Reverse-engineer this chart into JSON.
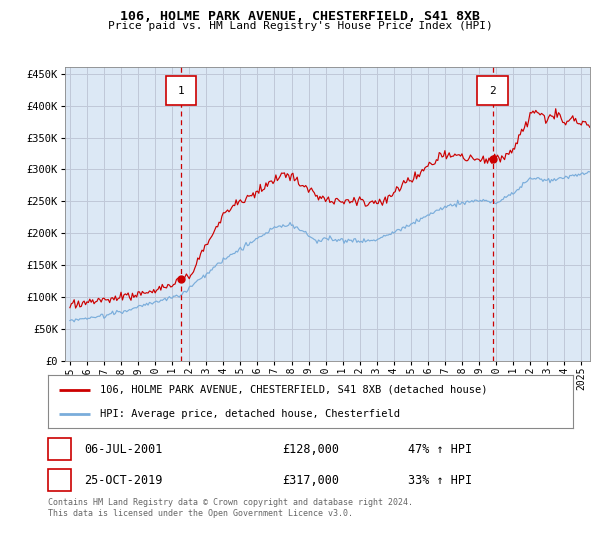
{
  "title": "106, HOLME PARK AVENUE, CHESTERFIELD, S41 8XB",
  "subtitle": "Price paid vs. HM Land Registry's House Price Index (HPI)",
  "legend_line1": "106, HOLME PARK AVENUE, CHESTERFIELD, S41 8XB (detached house)",
  "legend_line2": "HPI: Average price, detached house, Chesterfield",
  "footer": "Contains HM Land Registry data © Crown copyright and database right 2024.\nThis data is licensed under the Open Government Licence v3.0.",
  "marker1_date": "06-JUL-2001",
  "marker1_price": "£128,000",
  "marker1_hpi": "47% ↑ HPI",
  "marker1_x": 2001.51,
  "marker1_y": 128000,
  "marker2_date": "25-OCT-2019",
  "marker2_price": "£317,000",
  "marker2_hpi": "33% ↑ HPI",
  "marker2_x": 2019.81,
  "marker2_y": 317000,
  "red_color": "#cc0000",
  "blue_color": "#7aaddb",
  "grid_color": "#c0c8d8",
  "bg_color": "#dce8f5",
  "marker_box_color": "#cc0000",
  "ylim": [
    0,
    460000
  ],
  "xlim": [
    1994.7,
    2025.5
  ],
  "yticks": [
    0,
    50000,
    100000,
    150000,
    200000,
    250000,
    300000,
    350000,
    400000,
    450000
  ],
  "xticks": [
    1995,
    1996,
    1997,
    1998,
    1999,
    2000,
    2001,
    2002,
    2003,
    2004,
    2005,
    2006,
    2007,
    2008,
    2009,
    2010,
    2011,
    2012,
    2013,
    2014,
    2015,
    2016,
    2017,
    2018,
    2019,
    2020,
    2021,
    2022,
    2023,
    2024,
    2025
  ]
}
